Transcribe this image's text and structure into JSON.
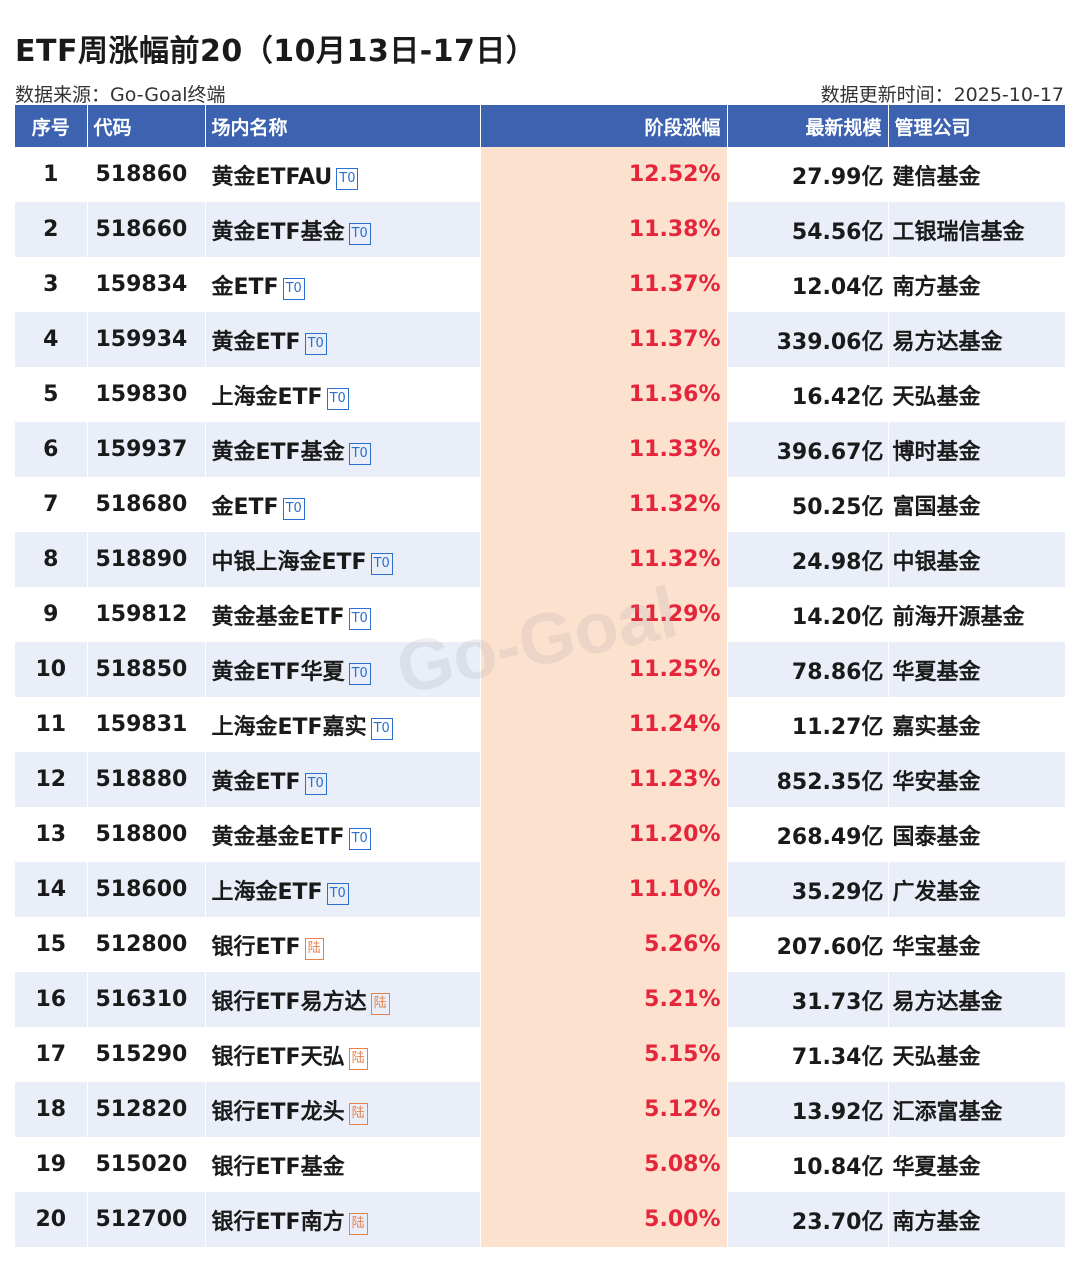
{
  "title": "ETF周涨幅前20（10月13日-17日）",
  "source": "数据来源：Go-Goal终端",
  "update": "数据更新时间：2025-10-17",
  "watermark": "Go-Goal",
  "headers": [
    "序号",
    "代码",
    "场内名称",
    "阶段涨幅",
    "最新规模",
    "管理公司"
  ],
  "rows": [
    {
      "n": "1",
      "code": "518860",
      "name": "黄金ETFAU",
      "tag": "T0",
      "change": "12.52%",
      "size": "27.99亿",
      "company": "建信基金"
    },
    {
      "n": "2",
      "code": "518660",
      "name": "黄金ETF基金",
      "tag": "T0",
      "change": "11.38%",
      "size": "54.56亿",
      "company": "工银瑞信基金"
    },
    {
      "n": "3",
      "code": "159834",
      "name": "金ETF",
      "tag": "T0",
      "change": "11.37%",
      "size": "12.04亿",
      "company": "南方基金"
    },
    {
      "n": "4",
      "code": "159934",
      "name": "黄金ETF",
      "tag": "T0",
      "change": "11.37%",
      "size": "339.06亿",
      "company": "易方达基金"
    },
    {
      "n": "5",
      "code": "159830",
      "name": "上海金ETF",
      "tag": "T0",
      "change": "11.36%",
      "size": "16.42亿",
      "company": "天弘基金"
    },
    {
      "n": "6",
      "code": "159937",
      "name": "黄金ETF基金",
      "tag": "T0",
      "change": "11.33%",
      "size": "396.67亿",
      "company": "博时基金"
    },
    {
      "n": "7",
      "code": "518680",
      "name": "金ETF",
      "tag": "T0",
      "change": "11.32%",
      "size": "50.25亿",
      "company": "富国基金"
    },
    {
      "n": "8",
      "code": "518890",
      "name": "中银上海金ETF",
      "tag": "T0",
      "change": "11.32%",
      "size": "24.98亿",
      "company": "中银基金"
    },
    {
      "n": "9",
      "code": "159812",
      "name": "黄金基金ETF",
      "tag": "T0",
      "change": "11.29%",
      "size": "14.20亿",
      "company": "前海开源基金"
    },
    {
      "n": "10",
      "code": "518850",
      "name": "黄金ETF华夏",
      "tag": "T0",
      "change": "11.25%",
      "size": "78.86亿",
      "company": "华夏基金"
    },
    {
      "n": "11",
      "code": "159831",
      "name": "上海金ETF嘉实",
      "tag": "T0",
      "change": "11.24%",
      "size": "11.27亿",
      "company": "嘉实基金"
    },
    {
      "n": "12",
      "code": "518880",
      "name": "黄金ETF",
      "tag": "T0",
      "change": "11.23%",
      "size": "852.35亿",
      "company": "华安基金"
    },
    {
      "n": "13",
      "code": "518800",
      "name": "黄金基金ETF",
      "tag": "T0",
      "change": "11.20%",
      "size": "268.49亿",
      "company": "国泰基金"
    },
    {
      "n": "14",
      "code": "518600",
      "name": "上海金ETF",
      "tag": "T0",
      "change": "11.10%",
      "size": "35.29亿",
      "company": "广发基金"
    },
    {
      "n": "15",
      "code": "512800",
      "name": "银行ETF",
      "tag": "陆",
      "change": "5.26%",
      "size": "207.60亿",
      "company": "华宝基金"
    },
    {
      "n": "16",
      "code": "516310",
      "name": "银行ETF易方达",
      "tag": "陆",
      "change": "5.21%",
      "size": "31.73亿",
      "company": "易方达基金"
    },
    {
      "n": "17",
      "code": "515290",
      "name": "银行ETF天弘",
      "tag": "陆",
      "change": "5.15%",
      "size": "71.34亿",
      "company": "天弘基金"
    },
    {
      "n": "18",
      "code": "512820",
      "name": "银行ETF龙头",
      "tag": "陆",
      "change": "5.12%",
      "size": "13.92亿",
      "company": "汇添富基金"
    },
    {
      "n": "19",
      "code": "515020",
      "name": "银行ETF基金",
      "tag": "",
      "change": "5.08%",
      "size": "10.84亿",
      "company": "华夏基金"
    },
    {
      "n": "20",
      "code": "512700",
      "name": "银行ETF南方",
      "tag": "陆",
      "change": "5.00%",
      "size": "23.70亿",
      "company": "南方基金"
    }
  ]
}
